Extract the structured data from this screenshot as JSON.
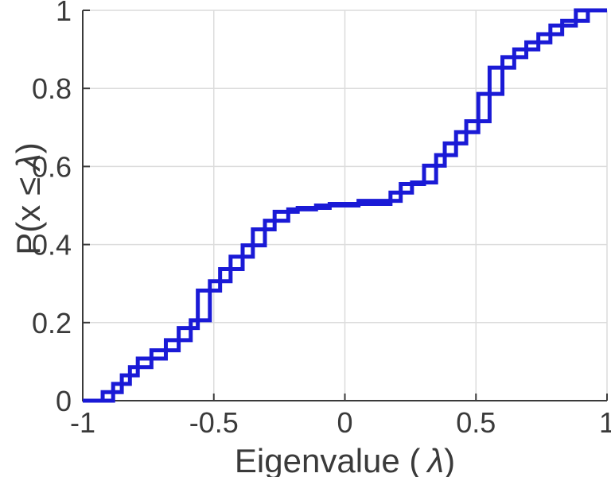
{
  "chart_data": {
    "type": "line",
    "subtype": "empirical-cdf-stairs",
    "description": "Empirical cumulative distribution of eigenvalues drawn as two overlaid blue staircase lines (pre-step and post-step), forming a chain of small open rectangles rising from (-1,0) to (1,1) with a plateau near P=0.5 around lambda=0.",
    "title": "",
    "xlabel_prefix": "Eigenvalue (",
    "xlabel_lambda": "λ",
    "xlabel_suffix": ")",
    "ylabel_prefix": "P(x ≤",
    "ylabel_lambda": "λ",
    "ylabel_suffix": ")",
    "xlim": [
      -1,
      1
    ],
    "ylim": [
      0,
      1
    ],
    "grid": true,
    "legend": null,
    "x_ticks": [
      {
        "value": -1,
        "label": "-1"
      },
      {
        "value": -0.5,
        "label": "-0.5"
      },
      {
        "value": 0,
        "label": "0"
      },
      {
        "value": 0.5,
        "label": "0.5"
      },
      {
        "value": 1,
        "label": "1"
      }
    ],
    "y_ticks": [
      {
        "value": 0,
        "label": "0"
      },
      {
        "value": 0.2,
        "label": "0.2"
      },
      {
        "value": 0.4,
        "label": "0.4"
      },
      {
        "value": 0.6,
        "label": "0.6"
      },
      {
        "value": 0.8,
        "label": "0.8"
      },
      {
        "value": 1,
        "label": "1"
      }
    ],
    "x_gridlines": [
      -0.5,
      0,
      0.5
    ],
    "y_gridlines": [
      0.2,
      0.4,
      0.6,
      0.8
    ],
    "line_color": "#1A1AD6",
    "axis_color": "#3A3A3A",
    "grid_color": "#DCDCDC",
    "line_width": 5,
    "points": [
      [
        -1.0,
        0.0
      ],
      [
        -0.924,
        0.0
      ],
      [
        -0.884,
        0.022
      ],
      [
        -0.851,
        0.043
      ],
      [
        -0.82,
        0.065
      ],
      [
        -0.79,
        0.086
      ],
      [
        -0.738,
        0.108
      ],
      [
        -0.683,
        0.129
      ],
      [
        -0.634,
        0.155
      ],
      [
        -0.588,
        0.186
      ],
      [
        -0.561,
        0.206
      ],
      [
        -0.515,
        0.282
      ],
      [
        -0.476,
        0.306
      ],
      [
        -0.436,
        0.337
      ],
      [
        -0.39,
        0.369
      ],
      [
        -0.351,
        0.398
      ],
      [
        -0.305,
        0.439
      ],
      [
        -0.268,
        0.461
      ],
      [
        -0.216,
        0.484
      ],
      [
        -0.18,
        0.49
      ],
      [
        -0.11,
        0.494
      ],
      [
        -0.058,
        0.5
      ],
      [
        0.052,
        0.504
      ],
      [
        0.174,
        0.512
      ],
      [
        0.213,
        0.533
      ],
      [
        0.256,
        0.555
      ],
      [
        0.302,
        0.559
      ],
      [
        0.348,
        0.602
      ],
      [
        0.381,
        0.629
      ],
      [
        0.424,
        0.659
      ],
      [
        0.463,
        0.688
      ],
      [
        0.509,
        0.716
      ],
      [
        0.552,
        0.786
      ],
      [
        0.601,
        0.853
      ],
      [
        0.646,
        0.88
      ],
      [
        0.692,
        0.9
      ],
      [
        0.738,
        0.918
      ],
      [
        0.784,
        0.939
      ],
      [
        0.829,
        0.961
      ],
      [
        0.881,
        0.973
      ],
      [
        0.927,
        1.0
      ],
      [
        1.0,
        1.0
      ]
    ]
  }
}
